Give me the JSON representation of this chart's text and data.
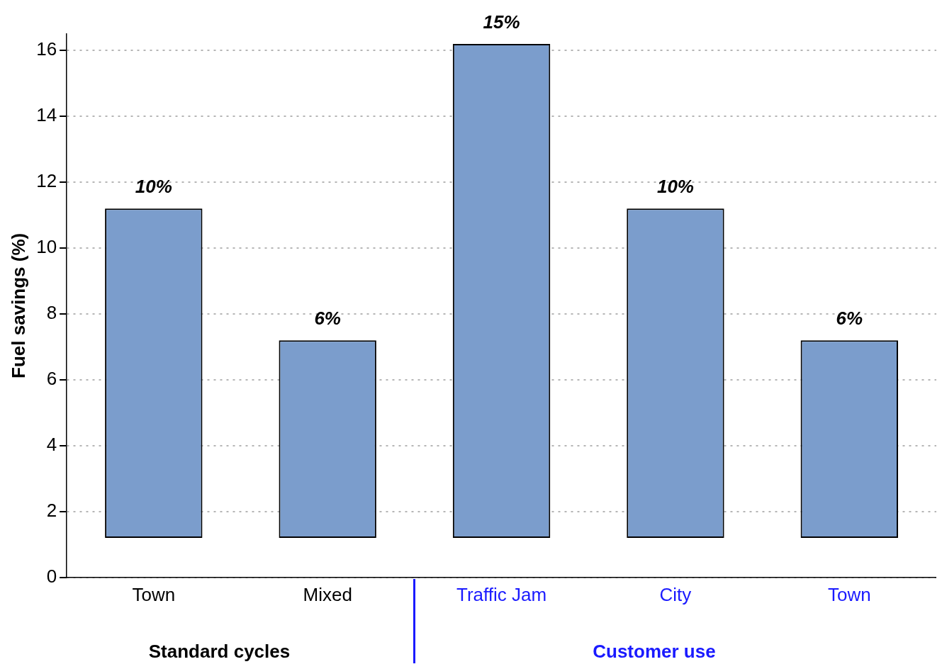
{
  "chart_data": {
    "type": "bar",
    "ylabel": "Fuel savings (%)",
    "categories": [
      "Town",
      "Mixed",
      "Traffic Jam",
      "City",
      "Town"
    ],
    "values": [
      10,
      6,
      15,
      10,
      6
    ],
    "base": [
      1.2,
      1.2,
      1.2,
      1.2,
      1.2
    ],
    "value_labels": [
      "10%",
      "6%",
      "15%",
      "10%",
      "6%"
    ],
    "color": "#7b9dcc",
    "ylim": [
      0,
      16.5
    ],
    "yticks": [
      0,
      2,
      4,
      6,
      8,
      10,
      12,
      14,
      16
    ],
    "grid": "y",
    "legend": false,
    "annotations": [
      "Standard cycles",
      "Customer use"
    ]
  }
}
